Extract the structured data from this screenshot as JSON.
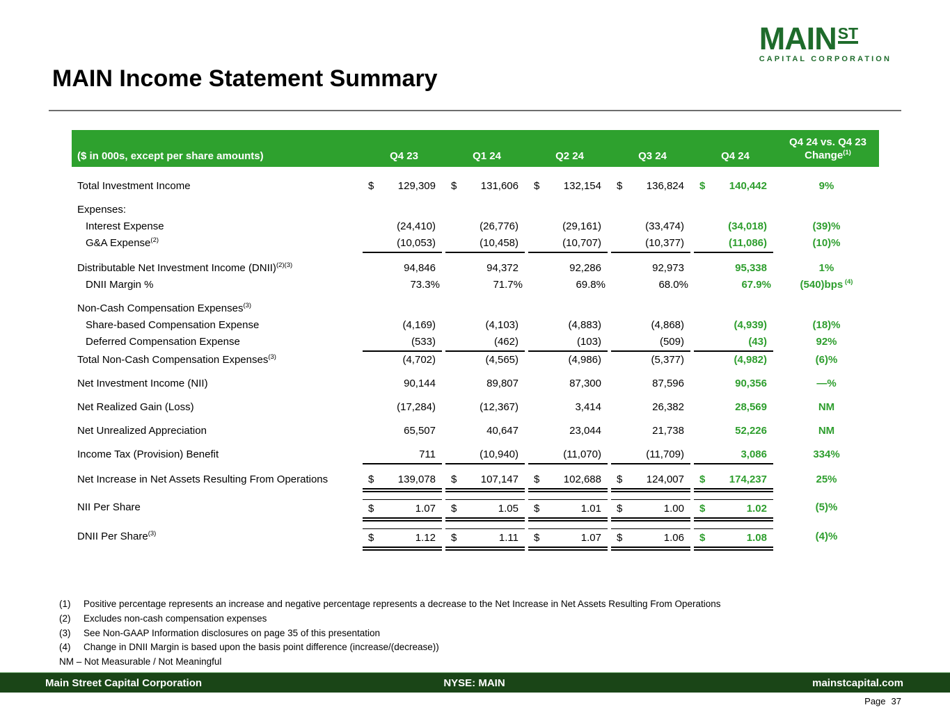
{
  "title": "MAIN Income Statement Summary",
  "logo": {
    "main": "MAIN",
    "st": "ST",
    "subtitle": "CAPITAL CORPORATION"
  },
  "colors": {
    "table_green": "#2EA12E",
    "text_green": "#2E9E2E",
    "footer_green": "#1A4517",
    "logo_green": "#1E6B2B"
  },
  "table": {
    "header": {
      "label": "($ in 000s, except per share amounts)",
      "quarters": [
        "Q4 23",
        "Q1 24",
        "Q2 24",
        "Q3 24",
        "Q4 24"
      ],
      "change_top": "Q4 24 vs. Q4 23",
      "change_label": "Change",
      "change_sup": "(1)"
    },
    "rows": [
      {
        "label": "Total Investment Income",
        "dollar": true,
        "values": [
          "129,309",
          "131,606",
          "132,154",
          "136,824",
          "140,442"
        ],
        "change": "9%",
        "gap": true
      },
      {
        "label": "Expenses:",
        "section": true,
        "gap": true
      },
      {
        "label": "Interest Expense",
        "indent": true,
        "values": [
          "(24,410)",
          "(26,776)",
          "(29,161)",
          "(33,474)",
          "(34,018)"
        ],
        "change": "(39)%"
      },
      {
        "label": "G&A Expense",
        "sup": "(2)",
        "indent": true,
        "values": [
          "(10,053)",
          "(10,458)",
          "(10,707)",
          "(10,377)",
          "(11,086)"
        ],
        "change": "(10)%",
        "underline": true
      },
      {
        "label": "Distributable Net Investment Income (DNII)",
        "sup": "(2)(3)",
        "values": [
          "94,846",
          "94,372",
          "92,286",
          "92,973",
          "95,338"
        ],
        "change": "1%",
        "gap": true
      },
      {
        "label": "DNII Margin %",
        "indent": true,
        "values": [
          "73.3%",
          "71.7%",
          "69.8%",
          "68.0%",
          "67.9%"
        ],
        "change": "(540)bps",
        "change_sup": "(4)"
      },
      {
        "label": "Non-Cash Compensation Expenses",
        "sup": "(3)",
        "section": true,
        "gap": true
      },
      {
        "label": "Share-based Compensation Expense",
        "indent": true,
        "values": [
          "(4,169)",
          "(4,103)",
          "(4,883)",
          "(4,868)",
          "(4,939)"
        ],
        "change": "(18)%"
      },
      {
        "label": "Deferred Compensation Expense",
        "indent": true,
        "values": [
          "(533)",
          "(462)",
          "(103)",
          "(509)",
          "(43)"
        ],
        "change": "92%",
        "underline": true
      },
      {
        "label": "Total Non-Cash Compensation Expenses",
        "sup": "(3)",
        "values": [
          "(4,702)",
          "(4,565)",
          "(4,986)",
          "(5,377)",
          "(4,982)"
        ],
        "change": "(6)%"
      },
      {
        "label": "Net Investment Income (NII)",
        "values": [
          "90,144",
          "89,807",
          "87,300",
          "87,596",
          "90,356"
        ],
        "change": "—%",
        "gap": true
      },
      {
        "label": "Net Realized Gain (Loss)",
        "values": [
          "(17,284)",
          "(12,367)",
          "3,414",
          "26,382",
          "28,569"
        ],
        "change": "NM",
        "gap": true
      },
      {
        "label": "Net Unrealized Appreciation",
        "values": [
          "65,507",
          "40,647",
          "23,044",
          "21,738",
          "52,226"
        ],
        "change": "NM",
        "gap": true
      },
      {
        "label": "Income Tax (Provision) Benefit",
        "values": [
          "711",
          "(10,940)",
          "(11,070)",
          "(11,709)",
          "3,086"
        ],
        "change": "334%",
        "gap": true,
        "underline": true
      },
      {
        "label": "Net Increase in Net Assets Resulting From Operations",
        "dollar": true,
        "values": [
          "139,078",
          "107,147",
          "102,688",
          "124,007",
          "174,237"
        ],
        "change": "25%",
        "gap": true,
        "double": true
      },
      {
        "label": "NII Per Share",
        "dollar": true,
        "values": [
          "1.07",
          "1.05",
          "1.01",
          "1.00",
          "1.02"
        ],
        "change": "(5)%",
        "gap": true,
        "topline": true,
        "double": true
      },
      {
        "label": "DNII Per Share",
        "sup": "(3)",
        "dollar": true,
        "values": [
          "1.12",
          "1.11",
          "1.07",
          "1.06",
          "1.08"
        ],
        "change": "(4)%",
        "gap": true,
        "topline": true,
        "double": true
      }
    ]
  },
  "footnotes": [
    {
      "num": "(1)",
      "text": "Positive percentage represents an increase and negative percentage represents a decrease to the Net Increase in Net Assets Resulting From Operations"
    },
    {
      "num": "(2)",
      "text": "Excludes non-cash compensation expenses"
    },
    {
      "num": "(3)",
      "text": "See Non-GAAP Information disclosures on page 35 of this presentation"
    },
    {
      "num": "(4)",
      "text": "Change in DNII Margin is based upon the basis point difference (increase/(decrease))"
    },
    {
      "num": "",
      "text": "NM – Not Measurable / Not Meaningful"
    }
  ],
  "footer": {
    "left": "Main Street Capital Corporation",
    "center": "NYSE: MAIN",
    "right": "mainstcapital.com",
    "page_label": "Page",
    "page_number": "37"
  }
}
